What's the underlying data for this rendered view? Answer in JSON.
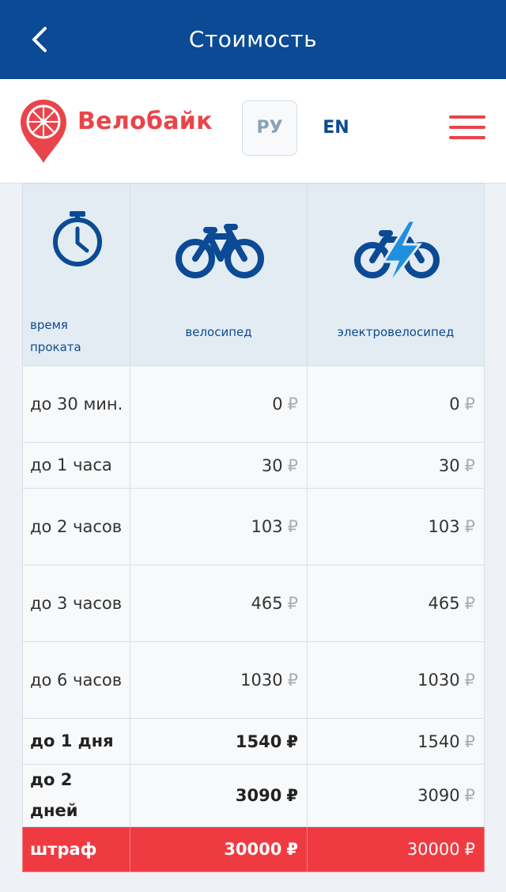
{
  "topbar": {
    "title": "Стоимость",
    "back_icon": "chevron-left-icon"
  },
  "header": {
    "logo_text": "Велобайк",
    "lang_ru": "РУ",
    "lang_en": "EN",
    "menu_icon": "hamburger-icon"
  },
  "colors": {
    "brand_blue": "#0b4a94",
    "brand_red": "#e8454b",
    "fine_red": "#f03a42"
  },
  "table": {
    "columns": [
      {
        "label": "время проката",
        "icon": "stopwatch-icon"
      },
      {
        "label": "велосипед",
        "icon": "bicycle-icon"
      },
      {
        "label": "электровелосипед",
        "icon": "electric-bicycle-icon"
      }
    ],
    "currency": "₽",
    "rows": [
      {
        "label": "до 30 мин.",
        "bike": "0",
        "ebike": "0"
      },
      {
        "label": "до 1 часа",
        "bike": "30",
        "ebike": "30"
      },
      {
        "label": "до 2 часов",
        "bike": "103",
        "ebike": "103"
      },
      {
        "label": "до 3 часов",
        "bike": "465",
        "ebike": "465"
      },
      {
        "label": "до 6 часов",
        "bike": "1030",
        "ebike": "1030"
      },
      {
        "label": "до 1 дня",
        "bike": "1540",
        "ebike": "1540"
      },
      {
        "label": "до 2 дней",
        "bike": "3090",
        "ebike": "3090"
      },
      {
        "label": "штраф",
        "bike": "30000",
        "ebike": "30000"
      }
    ]
  }
}
